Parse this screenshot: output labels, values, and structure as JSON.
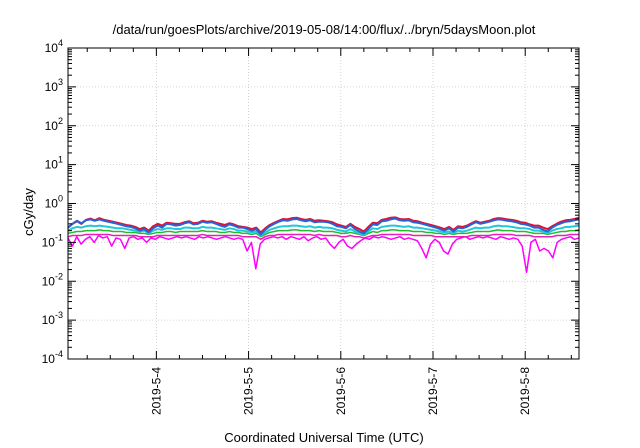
{
  "chart_data": {
    "type": "line",
    "title": "/data/run/goesPlots/archive/2019-05-08/14:00/flux/../bryn/5daysMoon.plot",
    "xlabel": "Coordinated Universal Time (UTC)",
    "ylabel": "cGy/day",
    "y_scale": "log",
    "ylim": [
      "1e-4",
      "1e4"
    ],
    "y_ticks": [
      {
        "base": "10",
        "exp": "-4"
      },
      {
        "base": "10",
        "exp": "-3"
      },
      {
        "base": "10",
        "exp": "-2"
      },
      {
        "base": "10",
        "exp": "-1"
      },
      {
        "base": "10",
        "exp": "0"
      },
      {
        "base": "10",
        "exp": "1"
      },
      {
        "base": "10",
        "exp": "2"
      },
      {
        "base": "10",
        "exp": "3"
      },
      {
        "base": "10",
        "exp": "4"
      }
    ],
    "x_range": [
      "2019-05-03 01:00",
      "2019-05-08 14:00"
    ],
    "x_ticks": [
      "2019-5-4",
      "2019-5-5",
      "2019-5-6",
      "2019-5-7",
      "2019-5-8"
    ],
    "grid": true,
    "series": [
      {
        "color": "#dd1133",
        "stroke_width": 2,
        "values": [
          0.24,
          0.3,
          0.35,
          0.3,
          0.38,
          0.41,
          0.37,
          0.42,
          0.38,
          0.36,
          0.34,
          0.32,
          0.3,
          0.28,
          0.27,
          0.25,
          0.22,
          0.24,
          0.2,
          0.26,
          0.3,
          0.27,
          0.32,
          0.31,
          0.3,
          0.3,
          0.33,
          0.35,
          0.31,
          0.32,
          0.36,
          0.34,
          0.35,
          0.32,
          0.3,
          0.28,
          0.31,
          0.29,
          0.26,
          0.25,
          0.24,
          0.22,
          0.24,
          0.18,
          0.23,
          0.28,
          0.32,
          0.36,
          0.4,
          0.39,
          0.42,
          0.43,
          0.4,
          0.38,
          0.4,
          0.36,
          0.37,
          0.36,
          0.35,
          0.33,
          0.29,
          0.27,
          0.25,
          0.3,
          0.25,
          0.22,
          0.19,
          0.25,
          0.32,
          0.31,
          0.38,
          0.4,
          0.43,
          0.44,
          0.4,
          0.39,
          0.4,
          0.36,
          0.35,
          0.32,
          0.3,
          0.28,
          0.26,
          0.24,
          0.22,
          0.25,
          0.21,
          0.26,
          0.25,
          0.27,
          0.31,
          0.35,
          0.32,
          0.34,
          0.36,
          0.4,
          0.42,
          0.41,
          0.39,
          0.38,
          0.36,
          0.33,
          0.32,
          0.29,
          0.27,
          0.27,
          0.24,
          0.22,
          0.26,
          0.3,
          0.34,
          0.37,
          0.38,
          0.4,
          0.43
        ]
      },
      {
        "color": "#2a62d6",
        "stroke_width": 2,
        "values": [
          0.24,
          0.3,
          0.36,
          0.31,
          0.37,
          0.39,
          0.36,
          0.39,
          0.36,
          0.34,
          0.32,
          0.3,
          0.28,
          0.26,
          0.25,
          0.23,
          0.2,
          0.22,
          0.18,
          0.23,
          0.27,
          0.24,
          0.3,
          0.29,
          0.27,
          0.28,
          0.31,
          0.33,
          0.29,
          0.3,
          0.34,
          0.32,
          0.33,
          0.3,
          0.27,
          0.25,
          0.29,
          0.27,
          0.24,
          0.24,
          0.22,
          0.2,
          0.22,
          0.16,
          0.21,
          0.26,
          0.3,
          0.34,
          0.37,
          0.36,
          0.39,
          0.4,
          0.37,
          0.35,
          0.37,
          0.33,
          0.34,
          0.34,
          0.33,
          0.3,
          0.26,
          0.25,
          0.23,
          0.28,
          0.22,
          0.19,
          0.17,
          0.22,
          0.29,
          0.28,
          0.35,
          0.36,
          0.39,
          0.41,
          0.37,
          0.36,
          0.37,
          0.33,
          0.32,
          0.3,
          0.28,
          0.26,
          0.24,
          0.22,
          0.2,
          0.23,
          0.19,
          0.24,
          0.23,
          0.25,
          0.29,
          0.33,
          0.3,
          0.32,
          0.34,
          0.37,
          0.39,
          0.38,
          0.36,
          0.35,
          0.33,
          0.3,
          0.29,
          0.27,
          0.24,
          0.24,
          0.21,
          0.19,
          0.24,
          0.28,
          0.31,
          0.34,
          0.35,
          0.37,
          0.39
        ]
      },
      {
        "color": "#22c8d8",
        "stroke_width": 2,
        "values": [
          0.2,
          0.23,
          0.25,
          0.24,
          0.26,
          0.27,
          0.26,
          0.27,
          0.26,
          0.25,
          0.24,
          0.23,
          0.23,
          0.22,
          0.21,
          0.2,
          0.19,
          0.2,
          0.17,
          0.2,
          0.22,
          0.21,
          0.23,
          0.23,
          0.22,
          0.22,
          0.24,
          0.24,
          0.23,
          0.23,
          0.25,
          0.24,
          0.24,
          0.23,
          0.22,
          0.21,
          0.23,
          0.22,
          0.2,
          0.2,
          0.19,
          0.18,
          0.19,
          0.15,
          0.18,
          0.21,
          0.23,
          0.25,
          0.26,
          0.26,
          0.27,
          0.27,
          0.26,
          0.25,
          0.26,
          0.24,
          0.25,
          0.24,
          0.24,
          0.23,
          0.21,
          0.2,
          0.19,
          0.22,
          0.19,
          0.17,
          0.16,
          0.19,
          0.23,
          0.22,
          0.25,
          0.26,
          0.27,
          0.27,
          0.26,
          0.25,
          0.26,
          0.24,
          0.24,
          0.23,
          0.22,
          0.21,
          0.2,
          0.19,
          0.18,
          0.19,
          0.17,
          0.2,
          0.19,
          0.2,
          0.22,
          0.24,
          0.23,
          0.24,
          0.24,
          0.26,
          0.27,
          0.26,
          0.26,
          0.25,
          0.24,
          0.23,
          0.23,
          0.22,
          0.2,
          0.2,
          0.19,
          0.17,
          0.2,
          0.22,
          0.23,
          0.25,
          0.25,
          0.26,
          0.27
        ]
      },
      {
        "color": "#22bb33",
        "stroke_width": 1.5,
        "values": [
          0.17,
          0.18,
          0.19,
          0.19,
          0.2,
          0.2,
          0.2,
          0.21,
          0.2,
          0.2,
          0.19,
          0.19,
          0.19,
          0.18,
          0.18,
          0.18,
          0.17,
          0.17,
          0.16,
          0.17,
          0.18,
          0.18,
          0.19,
          0.19,
          0.18,
          0.19,
          0.19,
          0.19,
          0.19,
          0.19,
          0.2,
          0.19,
          0.19,
          0.19,
          0.18,
          0.18,
          0.19,
          0.18,
          0.18,
          0.17,
          0.17,
          0.16,
          0.17,
          0.14,
          0.16,
          0.18,
          0.19,
          0.2,
          0.2,
          0.2,
          0.21,
          0.21,
          0.2,
          0.2,
          0.2,
          0.19,
          0.2,
          0.19,
          0.19,
          0.19,
          0.18,
          0.17,
          0.17,
          0.18,
          0.17,
          0.16,
          0.15,
          0.17,
          0.19,
          0.18,
          0.2,
          0.2,
          0.21,
          0.21,
          0.2,
          0.2,
          0.2,
          0.19,
          0.19,
          0.19,
          0.18,
          0.18,
          0.17,
          0.17,
          0.16,
          0.17,
          0.16,
          0.17,
          0.17,
          0.17,
          0.18,
          0.19,
          0.19,
          0.19,
          0.19,
          0.2,
          0.21,
          0.2,
          0.2,
          0.2,
          0.19,
          0.19,
          0.19,
          0.18,
          0.17,
          0.17,
          0.17,
          0.16,
          0.17,
          0.18,
          0.19,
          0.19,
          0.2,
          0.2,
          0.21
        ]
      },
      {
        "color": "#e81fb4",
        "stroke_width": 1.5,
        "values": [
          0.14,
          0.15,
          0.15,
          0.15,
          0.16,
          0.16,
          0.16,
          0.16,
          0.16,
          0.16,
          0.15,
          0.15,
          0.15,
          0.15,
          0.15,
          0.15,
          0.14,
          0.14,
          0.14,
          0.14,
          0.15,
          0.15,
          0.15,
          0.15,
          0.15,
          0.15,
          0.15,
          0.15,
          0.15,
          0.15,
          0.16,
          0.15,
          0.15,
          0.15,
          0.15,
          0.15,
          0.15,
          0.15,
          0.15,
          0.14,
          0.14,
          0.14,
          0.14,
          0.12,
          0.14,
          0.15,
          0.15,
          0.16,
          0.16,
          0.16,
          0.16,
          0.16,
          0.16,
          0.16,
          0.16,
          0.15,
          0.16,
          0.15,
          0.15,
          0.15,
          0.15,
          0.14,
          0.14,
          0.15,
          0.14,
          0.14,
          0.13,
          0.14,
          0.15,
          0.15,
          0.16,
          0.16,
          0.16,
          0.16,
          0.16,
          0.16,
          0.16,
          0.15,
          0.15,
          0.15,
          0.15,
          0.15,
          0.14,
          0.14,
          0.14,
          0.14,
          0.14,
          0.14,
          0.14,
          0.14,
          0.15,
          0.15,
          0.15,
          0.15,
          0.15,
          0.16,
          0.16,
          0.16,
          0.16,
          0.16,
          0.15,
          0.15,
          0.15,
          0.15,
          0.14,
          0.14,
          0.14,
          0.14,
          0.14,
          0.15,
          0.15,
          0.15,
          0.16,
          0.16,
          0.16
        ]
      },
      {
        "color": "#ff00ff",
        "stroke_width": 1.5,
        "values": [
          0.13,
          0.08,
          0.14,
          0.09,
          0.12,
          0.14,
          0.1,
          0.15,
          0.13,
          0.14,
          0.08,
          0.13,
          0.12,
          0.07,
          0.13,
          0.14,
          0.12,
          0.13,
          0.1,
          0.13,
          0.12,
          0.14,
          0.13,
          0.12,
          0.13,
          0.14,
          0.13,
          0.14,
          0.13,
          0.12,
          0.14,
          0.13,
          0.14,
          0.13,
          0.12,
          0.13,
          0.14,
          0.13,
          0.12,
          0.13,
          0.12,
          0.06,
          0.1,
          0.021,
          0.09,
          0.12,
          0.13,
          0.14,
          0.13,
          0.14,
          0.12,
          0.14,
          0.13,
          0.12,
          0.14,
          0.11,
          0.13,
          0.14,
          0.12,
          0.13,
          0.09,
          0.07,
          0.1,
          0.12,
          0.08,
          0.07,
          0.09,
          0.11,
          0.13,
          0.12,
          0.14,
          0.13,
          0.14,
          0.13,
          0.12,
          0.13,
          0.14,
          0.12,
          0.13,
          0.12,
          0.11,
          0.07,
          0.04,
          0.09,
          0.12,
          0.1,
          0.06,
          0.05,
          0.09,
          0.12,
          0.13,
          0.14,
          0.12,
          0.13,
          0.14,
          0.13,
          0.14,
          0.13,
          0.12,
          0.14,
          0.13,
          0.12,
          0.13,
          0.12,
          0.08,
          0.017,
          0.1,
          0.12,
          0.06,
          0.07,
          0.06,
          0.04,
          0.1,
          0.12,
          0.13,
          0.14,
          0.12,
          0.13
        ]
      }
    ]
  }
}
